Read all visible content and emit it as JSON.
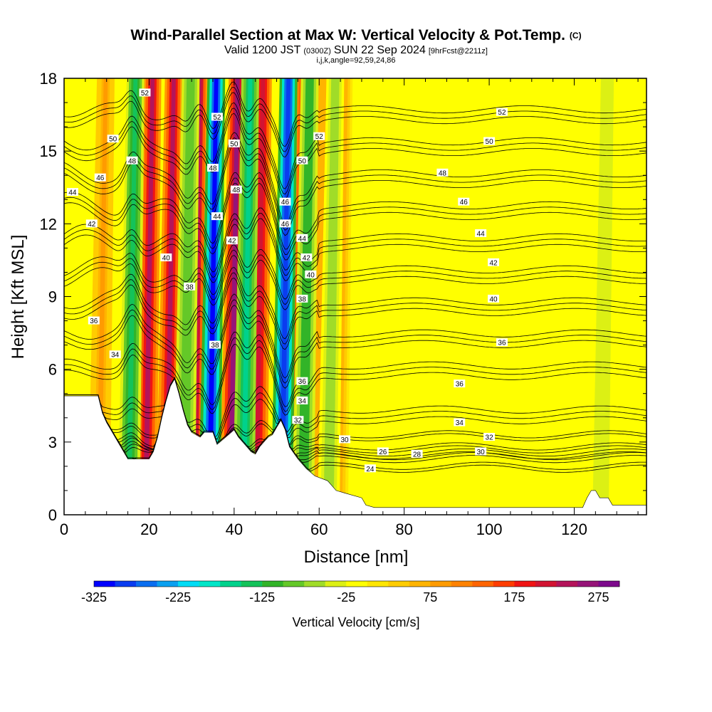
{
  "chart_data": {
    "type": "heatmap",
    "title": "Wind-Parallel Section at Max W: Vertical Velocity & Pot.Temp.",
    "title_mark": "(C)",
    "subtitle_valid": "Valid 1200 JST",
    "subtitle_utc": "(0300Z)",
    "subtitle_date": "SUN 22 Sep 2024",
    "subtitle_fcst": "[9hrFcst@2211z]",
    "subtitle_indices": "i,j,k,angle=92,59,24,86",
    "xlabel": "Distance [nm]",
    "ylabel": "Height [Kft MSL]",
    "xlim": [
      0,
      137
    ],
    "ylim": [
      0,
      18
    ],
    "x_ticks": [
      "0",
      "20",
      "40",
      "60",
      "80",
      "100",
      "120"
    ],
    "x_tick_values": [
      0,
      20,
      40,
      60,
      80,
      100,
      120
    ],
    "y_ticks": [
      "0",
      "3",
      "6",
      "9",
      "12",
      "15",
      "18"
    ],
    "y_tick_values": [
      0,
      3,
      6,
      9,
      12,
      15,
      18
    ],
    "colorbar": {
      "label": "Vertical Velocity [cm/s]",
      "min": -325,
      "max": 300,
      "step": 25,
      "tick_labels": [
        "-325",
        "-225",
        "-125",
        "-25",
        "75",
        "175",
        "275"
      ],
      "tick_values": [
        -325,
        -225,
        -125,
        -25,
        75,
        175,
        275
      ],
      "colors": [
        "#0000ff",
        "#0a3cf0",
        "#0a6ef0",
        "#0aa0f0",
        "#00dcf5",
        "#00e6c8",
        "#00d28c",
        "#14c35a",
        "#32b428",
        "#64c828",
        "#a0dc28",
        "#dcf014",
        "#ffff00",
        "#ffe600",
        "#ffcc00",
        "#ffb400",
        "#ff9b00",
        "#ff8200",
        "#ff6400",
        "#ff3c00",
        "#f01414",
        "#d21432",
        "#b4145a",
        "#961478",
        "#7d0a8c"
      ]
    },
    "updrafts": [
      {
        "x": 9,
        "w": 75
      },
      {
        "x": 20,
        "w": 230
      },
      {
        "x": 25,
        "w": 230
      },
      {
        "x": 31,
        "w": 240
      },
      {
        "x": 40,
        "w": 260
      },
      {
        "x": 46,
        "w": 220
      },
      {
        "x": 55,
        "w": 130
      },
      {
        "x": 60,
        "w": 70
      },
      {
        "x": 65,
        "w": 60
      }
    ],
    "downdrafts": [
      {
        "x": 16,
        "w": -130
      },
      {
        "x": 29,
        "w": -100
      },
      {
        "x": 35,
        "w": -320
      },
      {
        "x": 43,
        "w": -160
      },
      {
        "x": 52,
        "w": -300
      },
      {
        "x": 57,
        "w": -120
      },
      {
        "x": 63,
        "w": -60
      },
      {
        "x": 127,
        "w": -50
      }
    ],
    "terrain": [
      [
        0,
        4.9
      ],
      [
        8,
        4.9
      ],
      [
        9,
        4.2
      ],
      [
        10,
        3.8
      ],
      [
        11,
        3.5
      ],
      [
        12,
        3.2
      ],
      [
        13,
        2.9
      ],
      [
        14,
        2.6
      ],
      [
        15,
        2.3
      ],
      [
        20,
        2.3
      ],
      [
        21,
        2.6
      ],
      [
        22,
        3.2
      ],
      [
        23,
        4.0
      ],
      [
        24,
        4.7
      ],
      [
        25,
        5.3
      ],
      [
        26,
        5.6
      ],
      [
        27,
        5.0
      ],
      [
        28,
        4.3
      ],
      [
        29,
        3.7
      ],
      [
        30,
        3.4
      ],
      [
        32,
        3.2
      ],
      [
        33,
        3.4
      ],
      [
        35,
        3.4
      ],
      [
        36,
        2.9
      ],
      [
        38,
        3.2
      ],
      [
        40,
        3.5
      ],
      [
        41,
        3.2
      ],
      [
        42,
        3.0
      ],
      [
        43,
        2.8
      ],
      [
        44,
        2.6
      ],
      [
        45,
        2.5
      ],
      [
        46,
        2.8
      ],
      [
        47,
        3.0
      ],
      [
        48,
        3.2
      ],
      [
        49,
        3.3
      ],
      [
        50,
        3.6
      ],
      [
        51,
        3.9
      ],
      [
        52,
        3.5
      ],
      [
        53,
        2.8
      ],
      [
        55,
        2.3
      ],
      [
        57,
        1.9
      ],
      [
        59,
        1.6
      ],
      [
        62,
        1.4
      ],
      [
        64,
        1.0
      ],
      [
        66,
        0.9
      ],
      [
        70,
        0.7
      ],
      [
        71,
        0.4
      ],
      [
        73,
        0.3
      ],
      [
        80,
        0.3
      ],
      [
        100,
        0.3
      ],
      [
        118,
        0.3
      ],
      [
        122,
        0.3
      ],
      [
        123,
        0.7
      ],
      [
        124,
        1.0
      ],
      [
        125,
        1.0
      ],
      [
        126,
        0.7
      ],
      [
        128,
        0.7
      ],
      [
        129,
        0.4
      ],
      [
        137,
        0.4
      ]
    ],
    "theta_levels": [
      24,
      26,
      28,
      30,
      32,
      34,
      36,
      38,
      40,
      42,
      44,
      46,
      48,
      50,
      52
    ],
    "theta_label_positions": [
      {
        "v": "52",
        "x": 19,
        "y": 17.4
      },
      {
        "v": "50",
        "x": 11.5,
        "y": 15.5
      },
      {
        "v": "48",
        "x": 16,
        "y": 14.6
      },
      {
        "v": "46",
        "x": 8.5,
        "y": 13.9
      },
      {
        "v": "44",
        "x": 2,
        "y": 13.3
      },
      {
        "v": "42",
        "x": 6.5,
        "y": 12.0
      },
      {
        "v": "40",
        "x": 24,
        "y": 10.6
      },
      {
        "v": "38",
        "x": 29.5,
        "y": 9.4
      },
      {
        "v": "36",
        "x": 7,
        "y": 8.0
      },
      {
        "v": "34",
        "x": 12,
        "y": 6.6
      },
      {
        "v": "52",
        "x": 36,
        "y": 16.4
      },
      {
        "v": "50",
        "x": 40,
        "y": 15.3
      },
      {
        "v": "48",
        "x": 35,
        "y": 14.3
      },
      {
        "v": "48",
        "x": 40.5,
        "y": 13.4
      },
      {
        "v": "44",
        "x": 36,
        "y": 12.3
      },
      {
        "v": "42",
        "x": 39.5,
        "y": 11.3
      },
      {
        "v": "38",
        "x": 35.5,
        "y": 7.0
      },
      {
        "v": "46",
        "x": 52,
        "y": 12.9
      },
      {
        "v": "46",
        "x": 52,
        "y": 12.0
      },
      {
        "v": "44",
        "x": 56,
        "y": 11.4
      },
      {
        "v": "42",
        "x": 57,
        "y": 10.6
      },
      {
        "v": "40",
        "x": 58,
        "y": 9.9
      },
      {
        "v": "38",
        "x": 56,
        "y": 8.9
      },
      {
        "v": "36",
        "x": 56,
        "y": 5.5
      },
      {
        "v": "34",
        "x": 56,
        "y": 4.7
      },
      {
        "v": "32",
        "x": 55,
        "y": 3.9
      },
      {
        "v": "52",
        "x": 60,
        "y": 15.6
      },
      {
        "v": "50",
        "x": 56,
        "y": 14.6
      },
      {
        "v": "30",
        "x": 66,
        "y": 3.1
      },
      {
        "v": "26",
        "x": 75,
        "y": 2.6
      },
      {
        "v": "28",
        "x": 83,
        "y": 2.5
      },
      {
        "v": "24",
        "x": 72,
        "y": 1.9
      },
      {
        "v": "30",
        "x": 98,
        "y": 2.6
      },
      {
        "v": "32",
        "x": 100,
        "y": 3.2
      },
      {
        "v": "34",
        "x": 93,
        "y": 3.8
      },
      {
        "v": "36",
        "x": 93,
        "y": 5.4
      },
      {
        "v": "36",
        "x": 103,
        "y": 7.1
      },
      {
        "v": "40",
        "x": 101,
        "y": 8.9
      },
      {
        "v": "42",
        "x": 101,
        "y": 10.4
      },
      {
        "v": "44",
        "x": 98,
        "y": 11.6
      },
      {
        "v": "46",
        "x": 94,
        "y": 12.9
      },
      {
        "v": "48",
        "x": 89,
        "y": 14.1
      },
      {
        "v": "50",
        "x": 100,
        "y": 15.4
      },
      {
        "v": "52",
        "x": 103,
        "y": 16.6
      }
    ]
  }
}
